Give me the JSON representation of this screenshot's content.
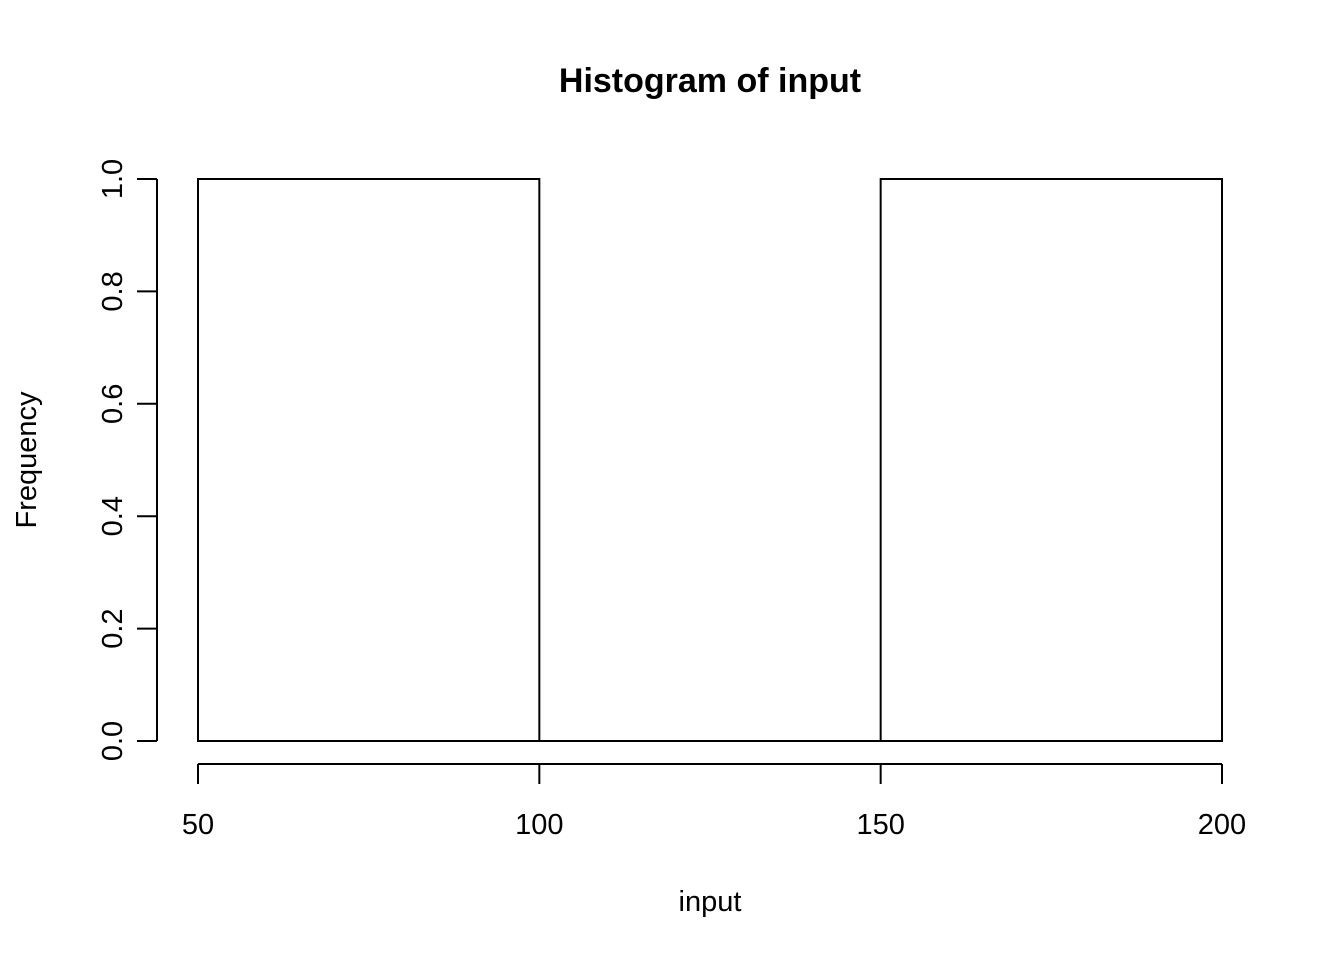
{
  "chart_data": {
    "type": "bar",
    "title": "Histogram of input",
    "xlabel": "input",
    "ylabel": "Frequency",
    "bins": [
      {
        "start": 50,
        "end": 100,
        "value": 1
      },
      {
        "start": 100,
        "end": 150,
        "value": 0
      },
      {
        "start": 150,
        "end": 200,
        "value": 1
      }
    ],
    "xlim": [
      50,
      200
    ],
    "ylim": [
      0,
      1
    ],
    "x_ticks": [
      50,
      100,
      150,
      200
    ],
    "x_tick_labels": [
      "50",
      "100",
      "150",
      "200"
    ],
    "y_ticks": [
      0,
      0.2,
      0.4,
      0.6,
      0.8,
      1.0
    ],
    "y_tick_labels": [
      "0.0",
      "0.2",
      "0.4",
      "0.6",
      "0.8",
      "1.0"
    ],
    "grid": false,
    "colors": {
      "bar_fill": "#ffffff",
      "bar_stroke": "#000000"
    }
  }
}
